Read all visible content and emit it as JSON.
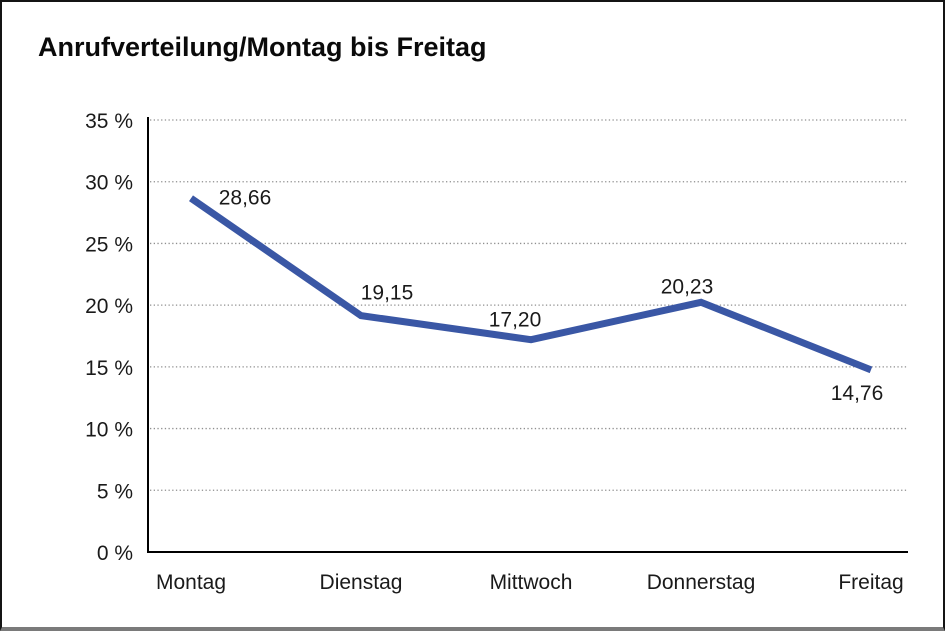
{
  "chart_data": {
    "type": "line",
    "title": "Anrufverteilung/Montag bis Freitag",
    "categories": [
      "Montag",
      "Dienstag",
      "Mittwoch",
      "Donnerstag",
      "Freitag"
    ],
    "values": [
      28.66,
      19.15,
      17.2,
      20.23,
      14.76
    ],
    "value_labels": [
      "28,66",
      "19,15",
      "17,20",
      "20,23",
      "14,76"
    ],
    "series_name": "Anrufverteilung",
    "xlabel": "",
    "ylabel": "",
    "ylim": [
      0,
      35
    ],
    "y_tick_values": [
      35,
      30,
      25,
      20,
      15,
      10,
      5,
      0
    ],
    "y_tick_labels": [
      "35 %",
      "30 %",
      "25 %",
      "20 %",
      "15 %",
      "10 %",
      "5 %",
      "0 %"
    ],
    "grid": "horizontal-dotted",
    "legend": "none",
    "colors": {
      "line": "#3a57a5",
      "grid": "#8f8f8f",
      "axis": "#000000",
      "text": "#1a1a1a",
      "background": "#ffffff"
    }
  }
}
